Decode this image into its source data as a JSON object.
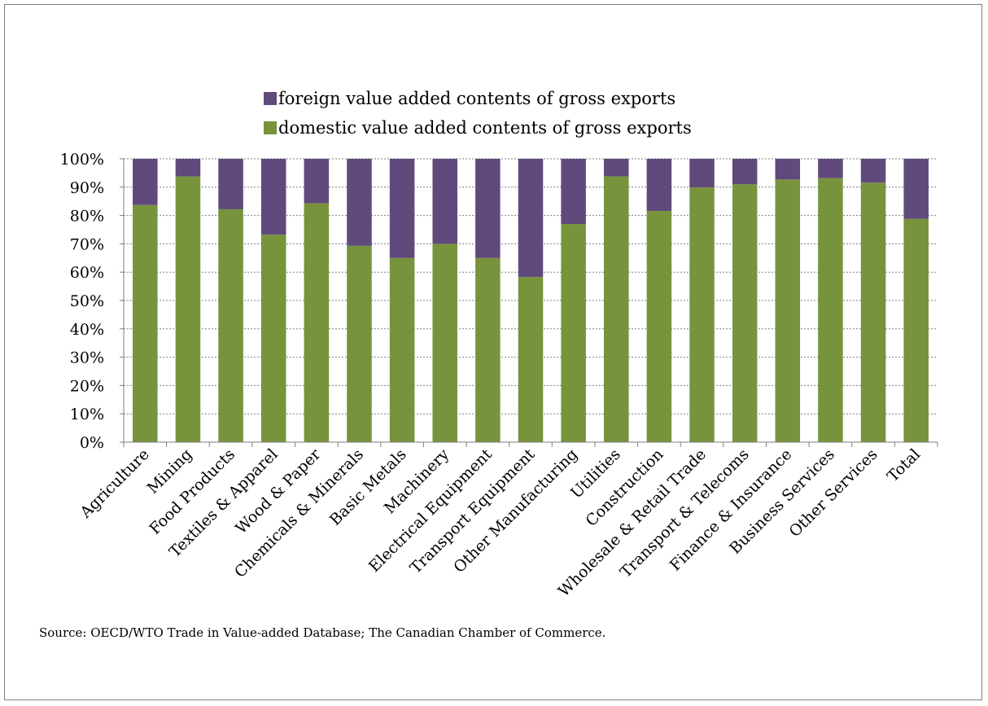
{
  "chart_data": {
    "type": "bar",
    "stacked": true,
    "categories": [
      "Agriculture",
      "Mining",
      "Food Products",
      "Textiles & Apparel",
      "Wood & Paper",
      "Chemicals & Minerals",
      "Basic Metals",
      "Machinery",
      "Electrical Equipment",
      "Transport Equipment",
      "Other Manufacturing",
      "Utilities",
      "Construction",
      "Wholesale & Retail Trade",
      "Transport & Telecoms",
      "Finance & Insurance",
      "Business Services",
      "Other Services",
      "Total"
    ],
    "series": [
      {
        "name": "domestic value added contents of gross exports",
        "color": "#77933c",
        "values": [
          83.7,
          93.8,
          82.2,
          73.2,
          84.3,
          69.3,
          65.0,
          70.0,
          65.0,
          58.3,
          77.0,
          93.8,
          81.6,
          89.9,
          91.0,
          92.7,
          93.2,
          91.6,
          78.8
        ]
      },
      {
        "name": "foreign value added contents of gross exports",
        "color": "#604a7b",
        "values": [
          16.3,
          6.2,
          17.8,
          26.8,
          15.7,
          30.7,
          35.0,
          30.0,
          35.0,
          41.7,
          23.0,
          6.2,
          18.4,
          10.1,
          9.0,
          7.3,
          6.8,
          8.4,
          21.2
        ]
      }
    ],
    "ylim": [
      0,
      100
    ],
    "yticks": [
      "0%",
      "10%",
      "20%",
      "30%",
      "40%",
      "50%",
      "60%",
      "70%",
      "80%",
      "90%",
      "100%"
    ],
    "grid": true,
    "legend_position": "top",
    "source": "Source: OECD/WTO Trade in Value-added Database; The Canadian Chamber of Commerce."
  }
}
